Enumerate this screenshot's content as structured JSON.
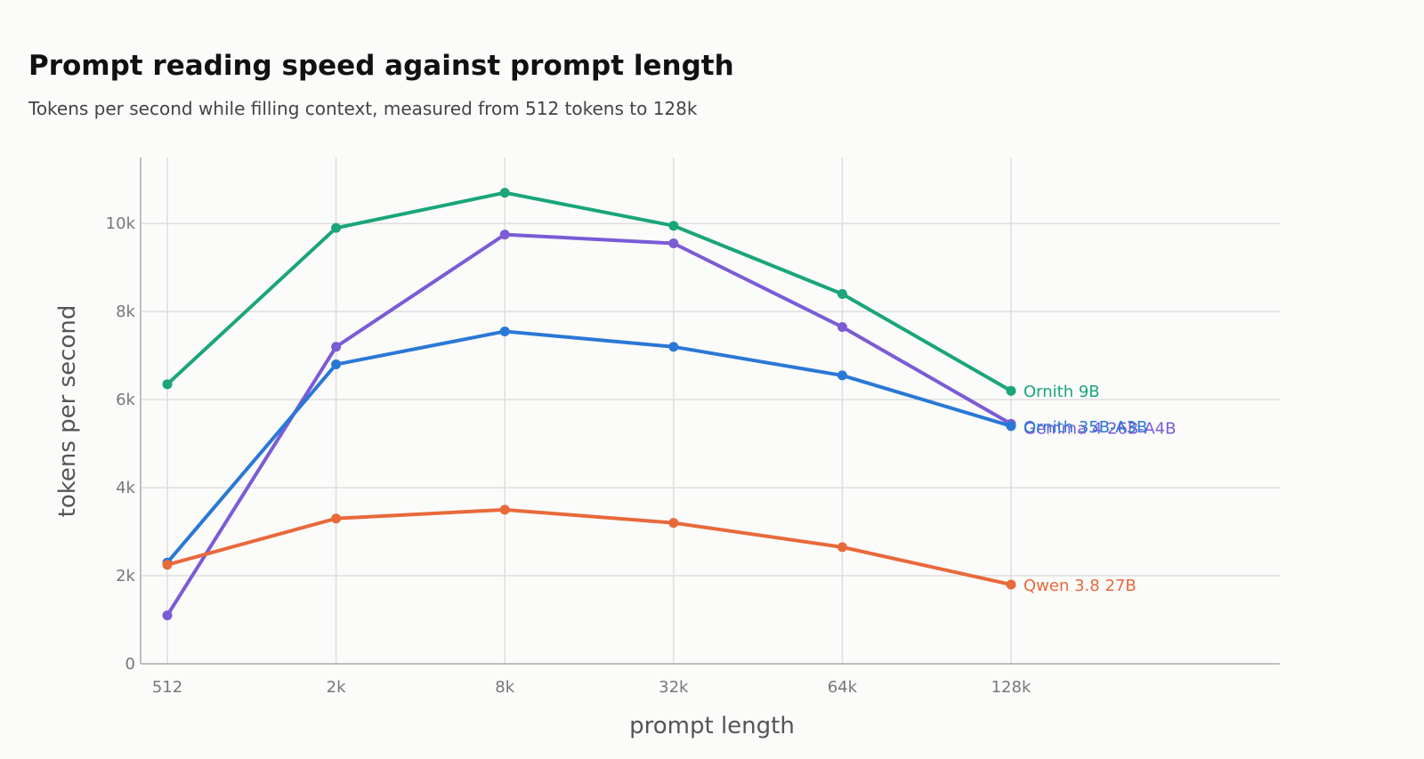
{
  "header": {
    "title": "Prompt reading speed against prompt length",
    "subtitle": "Tokens per second while filling context, measured from 512 tokens to 128k"
  },
  "chart_data": {
    "type": "line",
    "title": "Prompt reading speed against prompt length",
    "subtitle": "Tokens per second while filling context, measured from 512 tokens to 128k",
    "xlabel": "prompt length",
    "ylabel": "tokens per second",
    "categories": [
      "512",
      "2k",
      "8k",
      "32k",
      "64k",
      "128k"
    ],
    "ylim": [
      0,
      11500
    ],
    "yticks": [
      0,
      2000,
      4000,
      6000,
      8000,
      10000
    ],
    "ytick_labels": [
      "0",
      "2k",
      "4k",
      "6k",
      "8k",
      "10k"
    ],
    "grid": true,
    "legend": "labels at line ends",
    "series": [
      {
        "name": "Ornith 9B",
        "color": "#1aa57a",
        "values": [
          6350,
          9900,
          10700,
          9950,
          8400,
          6200
        ]
      },
      {
        "name": "Gemma 4 26B-A4B",
        "color": "#7b5bd6",
        "values": [
          1100,
          7200,
          9750,
          9550,
          7650,
          5450
        ]
      },
      {
        "name": "Ornith 35B-A3B",
        "color": "#2a78d6",
        "values": [
          2300,
          6800,
          7550,
          7200,
          6550,
          5400
        ]
      },
      {
        "name": "Qwen 3.8 27B",
        "color": "#e8693a",
        "values": [
          2250,
          3300,
          3500,
          3200,
          2650,
          1800
        ]
      }
    ]
  }
}
